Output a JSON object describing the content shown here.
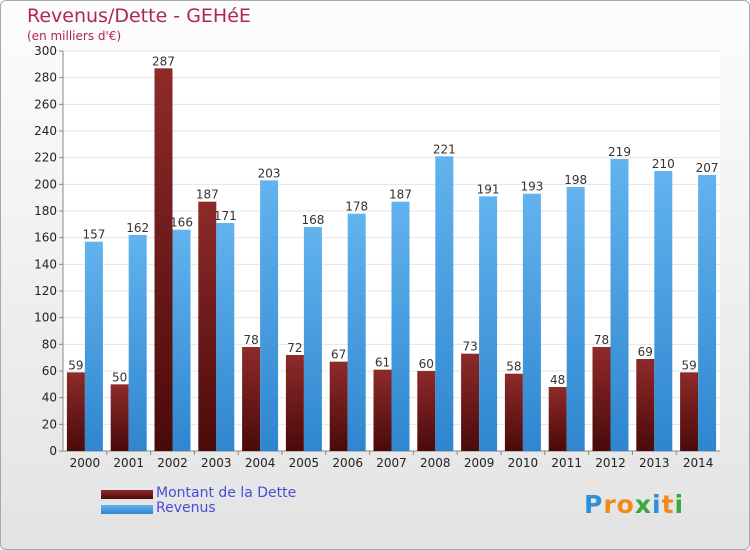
{
  "chart_data": {
    "type": "bar",
    "title": "Revenus/Dette - GEHéE",
    "subtitle": "(en milliers d'€)",
    "categories": [
      "2000",
      "2001",
      "2002",
      "2003",
      "2004",
      "2005",
      "2006",
      "2007",
      "2008",
      "2009",
      "2010",
      "2011",
      "2012",
      "2013",
      "2014"
    ],
    "series": [
      {
        "name": "Montant de la Dette",
        "color": "#7a1a1a",
        "values": [
          59,
          50,
          287,
          187,
          78,
          72,
          67,
          61,
          60,
          73,
          58,
          48,
          78,
          69,
          59
        ]
      },
      {
        "name": "Revenus",
        "color": "#4ea6e6",
        "values": [
          157,
          162,
          166,
          171,
          203,
          168,
          178,
          187,
          221,
          191,
          193,
          198,
          219,
          210,
          207
        ]
      }
    ],
    "ylim": [
      0,
      300
    ],
    "ytick_step": 20,
    "grid": true,
    "legend_position": "bottom-left"
  },
  "logo": {
    "letters": [
      {
        "ch": "P",
        "color": "#2f8fd8"
      },
      {
        "ch": "r",
        "color": "#f08a1c"
      },
      {
        "ch": "o",
        "color": "#f08a1c"
      },
      {
        "ch": "x",
        "color": "#3aa83a"
      },
      {
        "ch": "i",
        "color": "#2f8fd8"
      },
      {
        "ch": "t",
        "color": "#f08a1c"
      },
      {
        "ch": "i",
        "color": "#3aa83a"
      }
    ]
  }
}
